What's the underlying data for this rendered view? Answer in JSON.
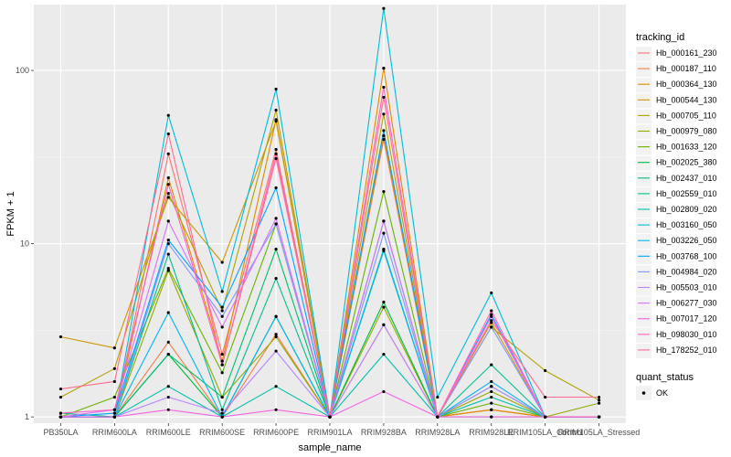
{
  "chart_data": {
    "type": "line",
    "title": "",
    "xlabel": "sample_name",
    "ylabel": "FPKM + 1",
    "y_scale": "log10",
    "ylim": [
      0.92,
      240
    ],
    "y_ticks": [
      1,
      10,
      100
    ],
    "y_tick_labels": [
      "1",
      "10",
      "100"
    ],
    "grid": true,
    "legend_position": "right",
    "categories": [
      "PB350LA",
      "RRIM600LA",
      "RRIM600LE",
      "RRIM600SE",
      "RRIM600PE",
      "RRIM901LA",
      "RRIM928BA",
      "RRIM928LA",
      "RRIM928LE",
      "RRIM105LA_Control",
      "RRIM105LA_Stressed"
    ],
    "legend": {
      "title": "tracking_id",
      "shape_title": "quant_status",
      "shape_entries": [
        {
          "label": "OK"
        }
      ]
    },
    "series": [
      {
        "name": "Hb_000161_230",
        "color": "#F8766D",
        "values": [
          1.0,
          1.0,
          33,
          2.3,
          35,
          1.0,
          40,
          1.0,
          1.1,
          1.0,
          1.0
        ]
      },
      {
        "name": "Hb_000187_110",
        "color": "#EE7F49",
        "values": [
          1.0,
          1.0,
          2.7,
          1.0,
          3.0,
          1.0,
          3.4,
          1.0,
          1.1,
          1.0,
          1.0
        ]
      },
      {
        "name": "Hb_000364_130",
        "color": "#E08B00",
        "values": [
          1.0,
          1.0,
          24,
          2.1,
          52,
          1.0,
          103,
          1.0,
          1.1,
          1.0,
          1.0
        ]
      },
      {
        "name": "Hb_000544_130",
        "color": "#CD9600",
        "values": [
          2.9,
          2.5,
          18.5,
          7.8,
          51,
          1.0,
          42,
          1.0,
          3.5,
          1.0,
          1.0
        ]
      },
      {
        "name": "Hb_000705_110",
        "color": "#B4A000",
        "values": [
          1.3,
          1.9,
          19.5,
          4.1,
          59,
          1.0,
          56,
          1.0,
          3.3,
          1.85,
          1.25
        ]
      },
      {
        "name": "Hb_000979_080",
        "color": "#96A900",
        "values": [
          1.0,
          1.0,
          7.0,
          1.3,
          2.9,
          1.0,
          4.3,
          1.0,
          1.4,
          1.0,
          1.2
        ]
      },
      {
        "name": "Hb_001633_120",
        "color": "#6BB100",
        "values": [
          1.0,
          1.3,
          7.2,
          1.8,
          13,
          1.0,
          20,
          1.0,
          1.2,
          1.0,
          1.0
        ]
      },
      {
        "name": "Hb_002025_380",
        "color": "#00BA38",
        "values": [
          1.0,
          1.0,
          2.3,
          1.0,
          3.8,
          1.0,
          4.6,
          1.0,
          1.0,
          1.0,
          1.0
        ]
      },
      {
        "name": "Hb_002437_010",
        "color": "#00BE6C",
        "values": [
          1.0,
          1.0,
          2.3,
          1.3,
          9.3,
          1.0,
          13.5,
          1.0,
          1.5,
          1.0,
          1.0
        ]
      },
      {
        "name": "Hb_002559_010",
        "color": "#00C08E",
        "values": [
          1.05,
          1.0,
          8.7,
          1.1,
          6.3,
          1.0,
          9.3,
          1.0,
          2.0,
          1.0,
          1.0
        ]
      },
      {
        "name": "Hb_002809_020",
        "color": "#00C0AA",
        "values": [
          1.0,
          1.0,
          1.5,
          1.0,
          1.5,
          1.0,
          2.3,
          1.0,
          1.3,
          1.0,
          1.0
        ]
      },
      {
        "name": "Hb_003160_050",
        "color": "#00BCD8",
        "values": [
          1.0,
          1.0,
          55,
          5.3,
          78,
          1.0,
          228,
          1.3,
          5.2,
          1.0,
          1.0
        ]
      },
      {
        "name": "Hb_003226_050",
        "color": "#00B4EF",
        "values": [
          1.0,
          1.0,
          4.0,
          1.0,
          3.8,
          1.0,
          9.1,
          1.0,
          1.6,
          1.0,
          1.0
        ]
      },
      {
        "name": "Hb_003768_100",
        "color": "#00A5FF",
        "values": [
          1.0,
          1.05,
          10.5,
          4.3,
          21,
          1.0,
          45,
          1.0,
          3.9,
          1.0,
          1.0
        ]
      },
      {
        "name": "Hb_004984_020",
        "color": "#7F96FF",
        "values": [
          1.0,
          1.0,
          10.0,
          3.8,
          13,
          1.0,
          11.5,
          1.0,
          3.3,
          1.0,
          1.0
        ]
      },
      {
        "name": "Hb_005503_010",
        "color": "#B983FF",
        "values": [
          1.0,
          1.0,
          1.3,
          1.05,
          2.4,
          1.0,
          3.4,
          1.0,
          1.5,
          1.0,
          1.0
        ]
      },
      {
        "name": "Hb_006277_030",
        "color": "#DC71FA",
        "values": [
          1.0,
          1.1,
          13.5,
          3.3,
          14,
          1.0,
          13.5,
          1.0,
          3.8,
          1.0,
          1.0
        ]
      },
      {
        "name": "Hb_007017_120",
        "color": "#F564E3",
        "values": [
          1.0,
          1.0,
          1.1,
          1.0,
          1.1,
          1.0,
          1.4,
          1.0,
          1.0,
          1.0,
          1.0
        ]
      },
      {
        "name": "Hb_098030_010",
        "color": "#FF61C3",
        "values": [
          1.05,
          1.1,
          22,
          2.0,
          33,
          1.0,
          80,
          1.0,
          4.1,
          1.0,
          1.0
        ]
      },
      {
        "name": "Hb_178252_010",
        "color": "#FF6C91",
        "values": [
          1.45,
          1.6,
          43,
          2.0,
          31,
          1.0,
          70,
          1.0,
          3.6,
          1.3,
          1.3
        ]
      }
    ]
  }
}
